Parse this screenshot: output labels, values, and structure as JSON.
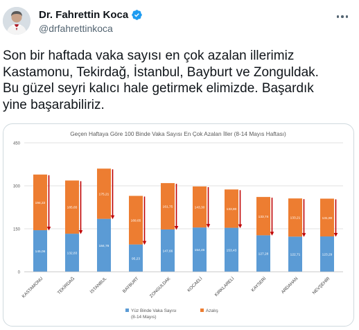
{
  "tweet": {
    "display_name": "Dr. Fahrettin Koca",
    "handle": "@drfahrettinkoca",
    "verified": true,
    "verified_icon": "verified-badge-icon",
    "verified_color": "#1d9bf0",
    "more_icon": "more-horizontal-icon",
    "text": "Son bir haftada vaka sayısı en çok azalan illerimiz\nKastamonu, Tekirdağ, İstanbul, Bayburt ve Zonguldak.\nBu güzel seyri kalıcı hale getirmek elimizde. Başardık\nyine başarabiliriz."
  },
  "chart_data": {
    "type": "bar",
    "stacked": true,
    "title": "Geçen Haftaya Göre 100 Binde Vaka Sayısı En Çok Azalan İller (8-14 Mayıs Haftası)",
    "categories": [
      "KASTAMONU",
      "TEKİRDAĞ",
      "İSTANBUL",
      "BAYBURT",
      "ZONGULDAK",
      "KOCAELİ",
      "KIRKLARELİ",
      "KAYSERİ",
      "ARDAHAN",
      "NEVŞEHİR"
    ],
    "series": [
      {
        "name": "Yüz Binde Vaka Sayısı (8-14 Mayıs)",
        "color": "#5b9bd5",
        "values": [
          145.06,
          132.83,
          184.78,
          95.23,
          147.66,
          154.46,
          153.43,
          127.28,
          122.71,
          123.29
        ],
        "labels": [
          "145,06",
          "132,83",
          "184,78",
          "95,23",
          "147,66",
          "154,46",
          "153,43",
          "127,28",
          "122,71",
          "123,29"
        ]
      },
      {
        "name": "Azalış",
        "color": "#ed7d31",
        "values": [
          194.22,
          185.65,
          175.21,
          169.65,
          161.75,
          143.3,
          133.8,
          133.74,
          133.21,
          131.9
        ],
        "labels": [
          "194,22",
          "185,65",
          "175,21",
          "169,65",
          "161,75",
          "143,30",
          "133,80",
          "133,74",
          "133,21",
          "131,90"
        ]
      }
    ],
    "y_ticks": [
      "0",
      "150",
      "300",
      "450"
    ],
    "ylim": [
      0,
      450
    ],
    "grid": true,
    "legend_position": "bottom",
    "arrow_color": "#c00000"
  }
}
